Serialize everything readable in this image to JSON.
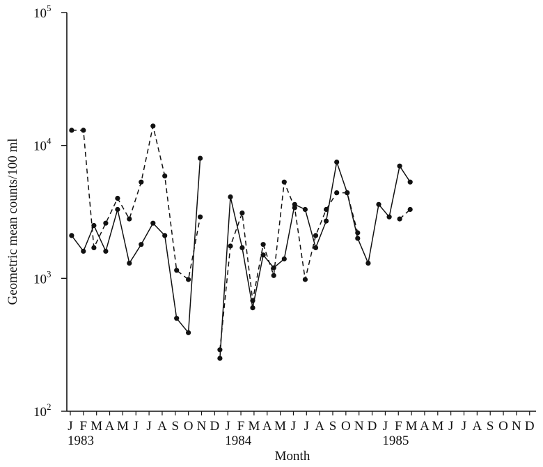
{
  "chart_data": {
    "type": "line",
    "title": "",
    "xlabel": "Month",
    "ylabel": "Geometric mean counts/100 ml",
    "yscale": "log",
    "ylim": [
      100,
      100000
    ],
    "y_ticks": [
      {
        "value": 100,
        "base": "10",
        "exp": "2"
      },
      {
        "value": 1000,
        "base": "10",
        "exp": "3"
      },
      {
        "value": 10000,
        "base": "10",
        "exp": "4"
      },
      {
        "value": 100000,
        "base": "10",
        "exp": "5"
      }
    ],
    "x_month_labels": [
      "J",
      "F",
      "M",
      "A",
      "M",
      "J",
      "J",
      "A",
      "S",
      "O",
      "N",
      "D",
      "J",
      "F",
      "M",
      "A",
      "M",
      "J",
      "J",
      "A",
      "S",
      "O",
      "N",
      "D",
      "J",
      "F",
      "M",
      "A",
      "M",
      "J",
      "J",
      "A",
      "S",
      "O",
      "N",
      "D"
    ],
    "x_year_labels": [
      {
        "month_index": 0,
        "label": "1983"
      },
      {
        "month_index": 12,
        "label": "1984"
      },
      {
        "month_index": 24,
        "label": "1985"
      }
    ],
    "series": [
      {
        "style": "solid",
        "segments": [
          [
            [
              0.1,
              2100
            ],
            [
              1.0,
              1600
            ],
            [
              1.8,
              2500
            ],
            [
              2.7,
              1600
            ],
            [
              3.6,
              3300
            ],
            [
              4.5,
              1300
            ],
            [
              5.4,
              1800
            ],
            [
              6.3,
              2600
            ],
            [
              7.2,
              2100
            ],
            [
              8.1,
              500
            ],
            [
              9.0,
              390
            ],
            [
              9.9,
              8000
            ]
          ],
          [
            [
              11.4,
              250
            ],
            [
              12.2,
              4100
            ],
            [
              13.1,
              1700
            ],
            [
              13.9,
              600
            ],
            [
              14.7,
              1500
            ],
            [
              15.5,
              1200
            ],
            [
              16.3,
              1400
            ],
            [
              17.1,
              3600
            ],
            [
              17.9,
              3300
            ],
            [
              18.7,
              1700
            ],
            [
              19.5,
              2700
            ],
            [
              20.3,
              7500
            ],
            [
              21.1,
              4400
            ],
            [
              21.9,
              2000
            ],
            [
              22.7,
              1300
            ],
            [
              23.5,
              3600
            ],
            [
              24.3,
              2900
            ],
            [
              25.1,
              7000
            ],
            [
              25.9,
              5300
            ]
          ]
        ]
      },
      {
        "style": "dashed",
        "segments": [
          [
            [
              0.1,
              13000
            ],
            [
              1.0,
              13000
            ],
            [
              1.8,
              1700
            ],
            [
              2.7,
              2600
            ],
            [
              3.6,
              4000
            ],
            [
              4.5,
              2800
            ],
            [
              5.4,
              5300
            ],
            [
              6.3,
              14000
            ],
            [
              7.2,
              5900
            ],
            [
              8.1,
              1150
            ],
            [
              9.0,
              980
            ],
            [
              9.9,
              2900
            ]
          ],
          [
            [
              11.4,
              290
            ],
            [
              12.2,
              1750
            ],
            [
              13.1,
              3100
            ],
            [
              13.9,
              680
            ],
            [
              14.7,
              1800
            ],
            [
              15.5,
              1050
            ],
            [
              16.3,
              5300
            ],
            [
              17.1,
              3400
            ],
            [
              17.9,
              980
            ],
            [
              18.7,
              2100
            ],
            [
              19.5,
              3300
            ],
            [
              20.3,
              4400
            ],
            [
              21.1,
              4400
            ],
            [
              21.9,
              2200
            ]
          ],
          [
            [
              25.1,
              2800
            ],
            [
              25.9,
              3300
            ]
          ]
        ]
      }
    ]
  }
}
